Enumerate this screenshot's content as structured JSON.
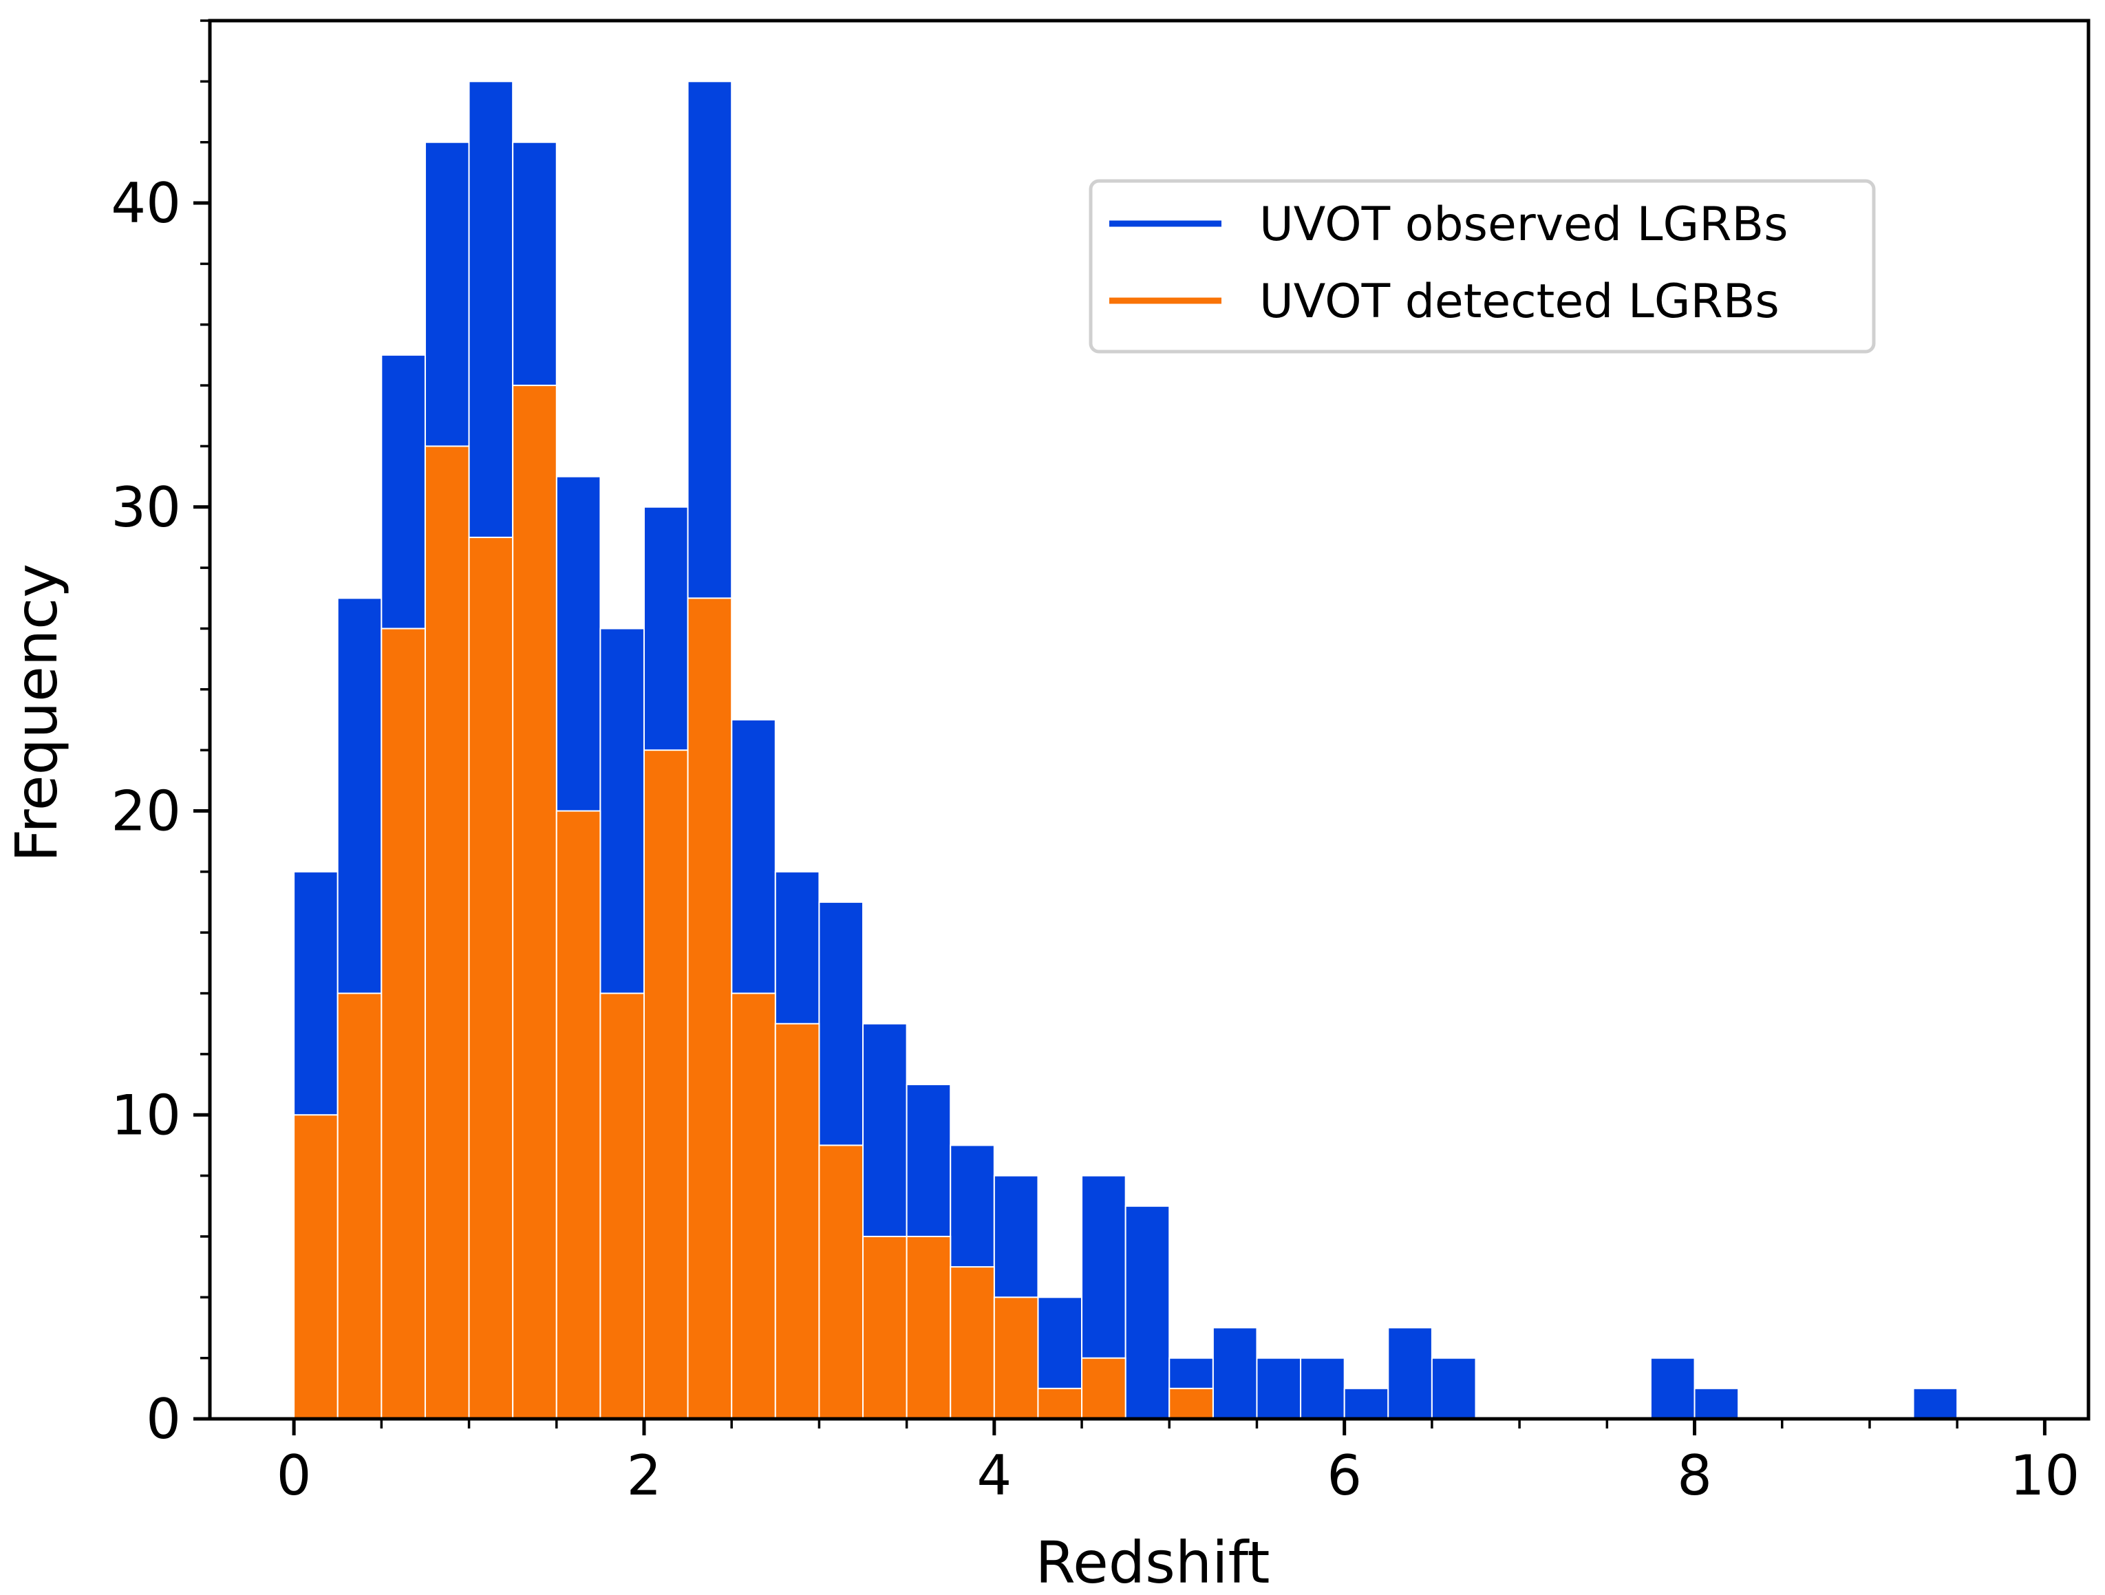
{
  "chart_data": {
    "type": "bar",
    "title": "",
    "xlabel": "Redshift",
    "ylabel": "Frequency",
    "xlim": [
      -0.48,
      10.25
    ],
    "ylim": [
      0,
      46
    ],
    "bin_width": 0.25,
    "x_ticks": [
      "0",
      "2",
      "4",
      "6",
      "8",
      "10"
    ],
    "y_ticks": [
      "0",
      "10",
      "20",
      "30",
      "40"
    ],
    "legend_position": "top-right",
    "series": [
      {
        "name": "UVOT observed LGRBs",
        "color": "#0343df",
        "bin_starts": [
          0.0,
          0.25,
          0.5,
          0.75,
          1.0,
          1.25,
          1.5,
          1.75,
          2.0,
          2.25,
          2.5,
          2.75,
          3.0,
          3.25,
          3.5,
          3.75,
          4.0,
          4.25,
          4.5,
          4.75,
          5.0,
          5.25,
          5.5,
          5.75,
          6.0,
          6.25,
          6.5,
          7.75,
          8.0,
          9.25
        ],
        "values": [
          18,
          27,
          35,
          42,
          44,
          42,
          31,
          26,
          30,
          44,
          23,
          18,
          17,
          13,
          11,
          9,
          8,
          4,
          8,
          7,
          2,
          3,
          2,
          2,
          1,
          3,
          2,
          2,
          1,
          1
        ]
      },
      {
        "name": "UVOT detected LGRBs",
        "color": "#f97306",
        "bin_starts": [
          0.0,
          0.25,
          0.5,
          0.75,
          1.0,
          1.25,
          1.5,
          1.75,
          2.0,
          2.25,
          2.5,
          2.75,
          3.0,
          3.25,
          3.5,
          3.75,
          4.0,
          4.25,
          4.5,
          5.0
        ],
        "values": [
          10,
          14,
          26,
          32,
          29,
          34,
          20,
          14,
          22,
          27,
          14,
          13,
          9,
          6,
          6,
          5,
          4,
          1,
          2,
          1
        ]
      }
    ]
  }
}
